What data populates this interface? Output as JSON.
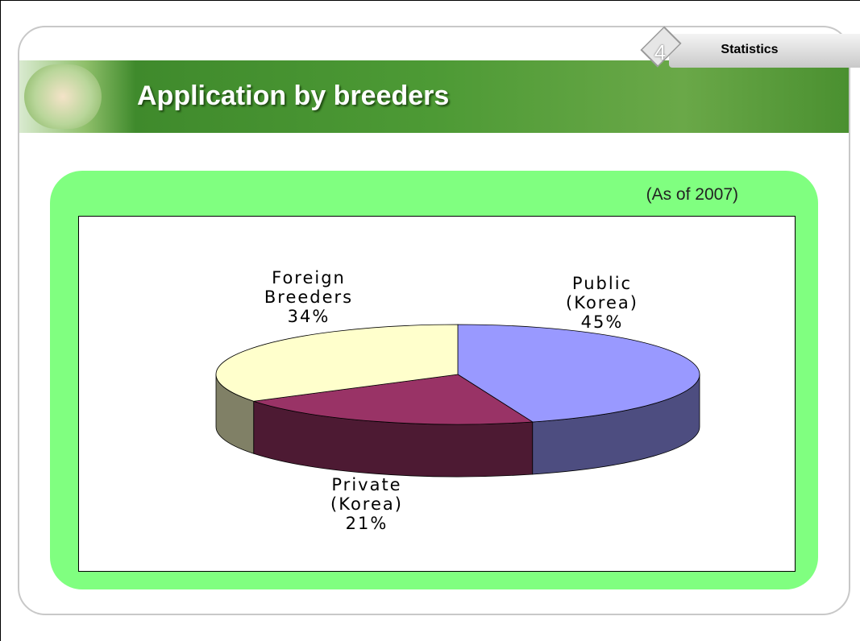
{
  "header": {
    "number": "4",
    "label": "Statistics"
  },
  "chart_data": {
    "type": "pie",
    "title": "Application by breeders",
    "subtitle": "(As of 2007)",
    "categories": [
      "Public (Korea)",
      "Private (Korea)",
      "Foreign Breeders"
    ],
    "values": [
      45,
      21,
      34
    ],
    "value_labels": [
      "45%",
      "21%",
      "34%"
    ],
    "colors": [
      "#9999ff",
      "#993366",
      "#ffffcc"
    ],
    "three_d": true
  }
}
